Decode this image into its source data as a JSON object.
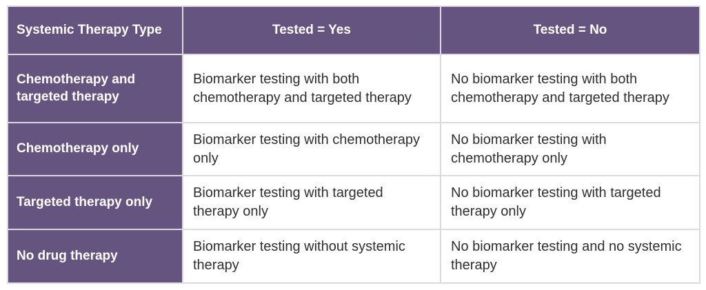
{
  "table": {
    "columns": [
      "Systemic Therapy Type",
      "Tested = Yes",
      "Tested = No"
    ],
    "rows": [
      {
        "label": "Chemotherapy and targeted therapy",
        "yes": "Biomarker testing with both chemotherapy and targeted therapy",
        "no": "No biomarker testing with both chemotherapy and targeted therapy"
      },
      {
        "label": "Chemotherapy only",
        "yes": "Biomarker testing with chemotherapy only",
        "no": "No biomarker testing with chemotherapy only"
      },
      {
        "label": "Targeted therapy only",
        "yes": "Biomarker testing with targeted therapy only",
        "no": "No biomarker testing with targeted therapy only"
      },
      {
        "label": "No drug therapy",
        "yes": "Biomarker testing without systemic therapy",
        "no": "No biomarker testing and no systemic therapy"
      }
    ],
    "colors": {
      "purple": "#655480",
      "header_text": "#ffffff",
      "body_text": "#2e2e2e",
      "border": "#dcd9e1",
      "page_bg": "#ffffff"
    }
  }
}
